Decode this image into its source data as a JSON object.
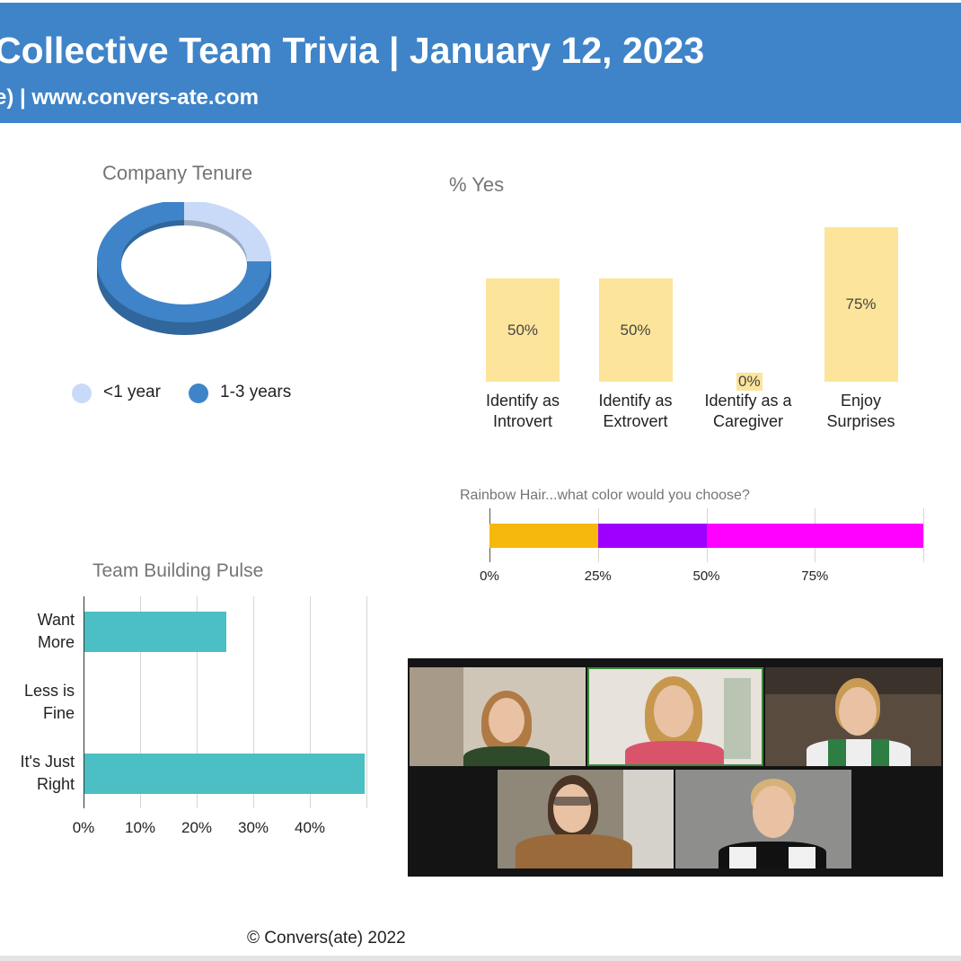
{
  "header": {
    "title": "Collective Team Trivia | January 12, 2023",
    "subtitle": "e) | www.convers-ate.com"
  },
  "footer": {
    "copyright": "© Convers(ate) 2022"
  },
  "colors": {
    "header_bg": "#3f84c8",
    "yes_bar": "#fce59a",
    "pulse_bar": "#4bbfc3"
  },
  "chart_data": [
    {
      "type": "pie",
      "title": "Company Tenure",
      "categories": [
        "<1 year",
        "1-3 years"
      ],
      "values": [
        25,
        75
      ],
      "colors": [
        "#c8daf7",
        "#3f84c8"
      ],
      "donut": true,
      "legend": "bottom"
    },
    {
      "type": "bar",
      "title": "% Yes",
      "categories": [
        "Identify as Introvert",
        "Identify as Extrovert",
        "Identify as a Caregiver",
        "Enjoy Surprises"
      ],
      "category_lines": [
        [
          "Identify as",
          "Introvert"
        ],
        [
          "Identify as",
          "Extrovert"
        ],
        [
          "Identify as a",
          "Caregiver"
        ],
        [
          "Enjoy",
          "Surprises"
        ]
      ],
      "values": [
        50,
        50,
        0,
        75
      ],
      "data_labels": [
        "50%",
        "50%",
        "0%",
        "75%"
      ],
      "ylim": [
        0,
        100
      ]
    },
    {
      "type": "bar",
      "orientation": "horizontal-stacked",
      "title": "Rainbow Hair...what color would you choose?",
      "series": [
        {
          "color": "#f6b80c",
          "values": [
            25
          ]
        },
        {
          "color": "#9d00ff",
          "values": [
            25
          ]
        },
        {
          "color": "#ff00ff",
          "values": [
            50
          ]
        }
      ],
      "xlim": [
        0,
        100
      ],
      "xticks": [
        "0%",
        "25%",
        "50%",
        "75%"
      ],
      "grid": true
    },
    {
      "type": "bar",
      "orientation": "horizontal",
      "title": "Team Building Pulse",
      "categories": [
        "Want More",
        "Less is Fine",
        "It's Just Right"
      ],
      "category_lines": [
        [
          "Want",
          "More"
        ],
        [
          "Less is",
          "Fine"
        ],
        [
          "It's Just",
          "Right"
        ]
      ],
      "values": [
        25,
        0,
        50
      ],
      "xlim": [
        0,
        50
      ],
      "xticks": [
        "0%",
        "10%",
        "20%",
        "30%",
        "40%"
      ],
      "grid": true
    }
  ]
}
